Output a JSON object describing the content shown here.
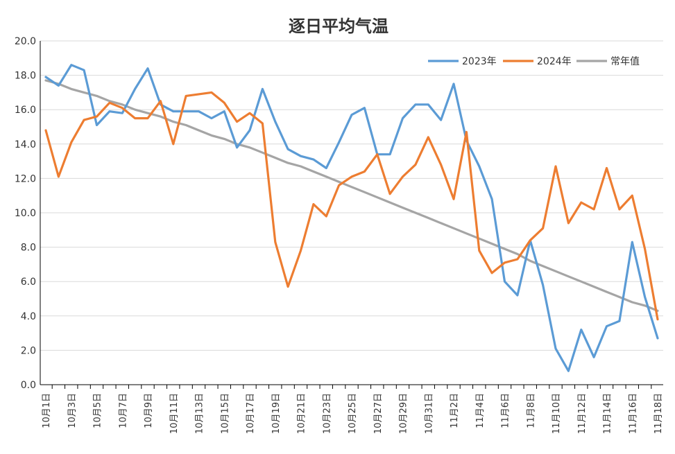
{
  "chart_data": {
    "type": "line",
    "title": "逐日平均气温",
    "xlabel": "",
    "ylabel": "",
    "ylim": [
      0,
      20
    ],
    "yticks": [
      "0.0",
      "2.0",
      "4.0",
      "6.0",
      "8.0",
      "10.0",
      "12.0",
      "14.0",
      "16.0",
      "18.0",
      "20.0"
    ],
    "grid": true,
    "legend_position": "top-right",
    "x": [
      "10月1日",
      "10月2日",
      "10月3日",
      "10月4日",
      "10月5日",
      "10月6日",
      "10月7日",
      "10月8日",
      "10月9日",
      "10月10日",
      "10月11日",
      "10月12日",
      "10月13日",
      "10月14日",
      "10月15日",
      "10月16日",
      "10月17日",
      "10月18日",
      "10月19日",
      "10月20日",
      "10月21日",
      "10月22日",
      "10月23日",
      "10月24日",
      "10月25日",
      "10月26日",
      "10月27日",
      "10月28日",
      "10月29日",
      "10月30日",
      "10月31日",
      "11月1日",
      "11月2日",
      "11月3日",
      "11月4日",
      "11月5日",
      "11月6日",
      "11月7日",
      "11月8日",
      "11月9日",
      "11月10日",
      "11月11日",
      "11月12日",
      "11月13日",
      "11月14日",
      "11月15日",
      "11月16日",
      "11月17日",
      "11月18日"
    ],
    "xtick_labels": [
      "10月1日",
      "10月3日",
      "10月5日",
      "10月7日",
      "10月9日",
      "10月11日",
      "10月13日",
      "10月15日",
      "10月17日",
      "10月19日",
      "10月21日",
      "10月23日",
      "10月25日",
      "10月27日",
      "10月29日",
      "10月31日",
      "11月2日",
      "11月4日",
      "11月6日",
      "11月8日",
      "11月10日",
      "11月12日",
      "11月14日",
      "11月16日",
      "11月18日"
    ],
    "series": [
      {
        "name": "2023年",
        "color": "#5b9bd5",
        "values": [
          17.9,
          17.4,
          18.6,
          18.3,
          15.1,
          15.9,
          15.8,
          17.2,
          18.4,
          16.3,
          15.9,
          15.9,
          15.9,
          15.5,
          15.9,
          13.8,
          14.8,
          17.2,
          15.3,
          13.7,
          13.3,
          13.1,
          12.6,
          14.1,
          15.7,
          16.1,
          13.4,
          13.4,
          15.5,
          16.3,
          16.3,
          15.4,
          17.5,
          14.2,
          12.7,
          10.8,
          6.0,
          5.2,
          8.4,
          5.8,
          2.1,
          0.8,
          3.2,
          1.6,
          3.4,
          3.7,
          8.3,
          5.1,
          2.7
        ]
      },
      {
        "name": "2024年",
        "color": "#ed7d31",
        "values": [
          14.8,
          12.1,
          14.1,
          15.4,
          15.6,
          16.4,
          16.1,
          15.5,
          15.5,
          16.5,
          14.0,
          16.8,
          16.9,
          17.0,
          16.4,
          15.3,
          15.8,
          15.2,
          8.3,
          5.7,
          7.8,
          10.5,
          9.8,
          11.6,
          12.1,
          12.4,
          13.4,
          11.1,
          12.1,
          12.8,
          14.4,
          12.8,
          10.8,
          14.7,
          7.8,
          6.5,
          7.1,
          7.3,
          8.4,
          9.1,
          12.7,
          9.4,
          10.6,
          10.2,
          12.6,
          10.2,
          11.0,
          7.9,
          3.8
        ]
      },
      {
        "name": "常年值",
        "color": "#a5a5a5",
        "values": [
          17.7,
          17.5,
          17.2,
          17.0,
          16.8,
          16.5,
          16.3,
          16.0,
          15.8,
          15.6,
          15.3,
          15.1,
          14.8,
          14.5,
          14.3,
          14.0,
          13.8,
          13.5,
          13.2,
          12.9,
          12.7,
          12.4,
          12.1,
          11.8,
          11.5,
          11.2,
          10.9,
          10.6,
          10.3,
          10.0,
          9.7,
          9.4,
          9.1,
          8.8,
          8.5,
          8.2,
          7.9,
          7.6,
          7.2,
          6.9,
          6.6,
          6.3,
          6.0,
          5.7,
          5.4,
          5.1,
          4.8,
          4.6,
          4.3
        ]
      }
    ]
  }
}
